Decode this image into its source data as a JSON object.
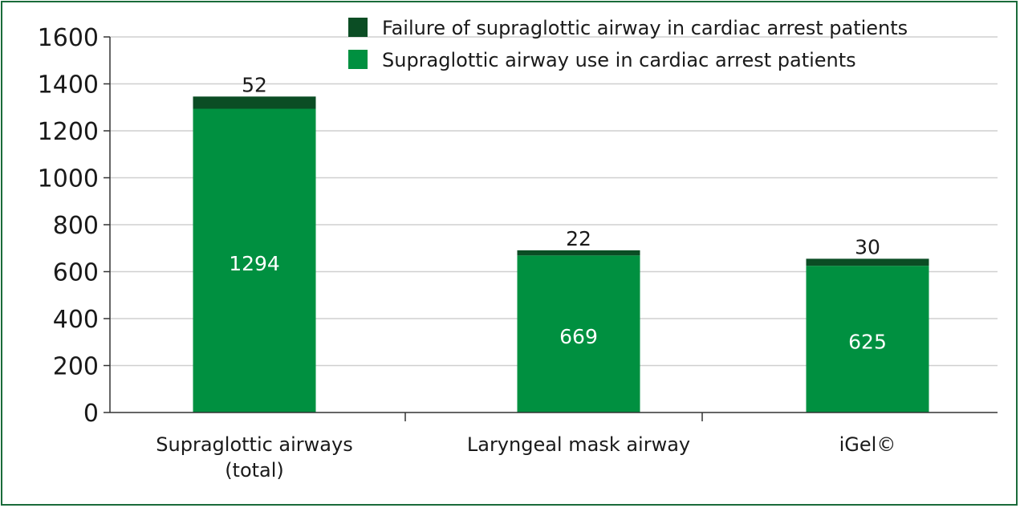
{
  "chart_data": {
    "type": "bar",
    "stacked": true,
    "categories": [
      [
        "Supraglottic airways",
        "(total)"
      ],
      [
        "Laryngeal mask airway"
      ],
      [
        "iGel©"
      ]
    ],
    "series": [
      {
        "name": "Supraglottic airway use in cardiac arrest patients",
        "values": [
          1294,
          669,
          625
        ],
        "color": "#009040"
      },
      {
        "name": "Failure of supraglottic airway in cardiac arrest patients",
        "values": [
          52,
          22,
          30
        ],
        "color": "#0b4d24"
      }
    ],
    "legend_order": [
      1,
      0
    ],
    "ylim": [
      0,
      1600
    ],
    "yticks": [
      0,
      200,
      400,
      600,
      800,
      1000,
      1200,
      1400,
      1600
    ],
    "grid": true,
    "legend": "top-center"
  },
  "colors": {
    "frame": "#1a6b3a",
    "grid": "#cfcfcf",
    "axis": "#333333"
  }
}
